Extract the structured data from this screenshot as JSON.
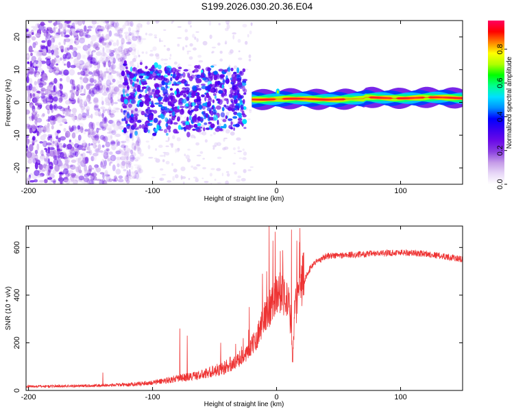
{
  "title": "S199.2026.030.20.36.E04",
  "colors": {
    "snr_line": "#ee3333",
    "colormap_stops": [
      "#ffffff",
      "#e7d7f7",
      "#c59be8",
      "#8a3fe0",
      "#6a0ae8",
      "#3b00f0",
      "#0000ff",
      "#0090ff",
      "#00e0ff",
      "#00ff90",
      "#00ff00",
      "#b0ff00",
      "#ffff00",
      "#ff8000",
      "#ff0000",
      "#ff0060"
    ]
  },
  "chart_data": [
    {
      "type": "heatmap",
      "name": "spectrogram",
      "xlabel": "Height of straight line (km)",
      "ylabel": "Frequency (Hz)",
      "xlim": [
        -202,
        150
      ],
      "ylim": [
        -25,
        25
      ],
      "xticks": [
        -200,
        -100,
        0,
        100
      ],
      "xtick_labels": [
        "-200",
        "-100",
        "0",
        "100"
      ],
      "yticks": [
        -20,
        -10,
        0,
        10,
        20
      ],
      "ytick_labels": [
        "-20",
        "-10",
        "0",
        "10",
        "20"
      ],
      "colorbar": {
        "label": "Normalized spectral amplitude",
        "range": [
          0,
          0.97
        ],
        "ticks": [
          0,
          0.2,
          0.4,
          0.6,
          0.8
        ],
        "tick_labels": [
          "0.0",
          "0.2",
          "0.4",
          "0.6",
          "0.8"
        ]
      },
      "description_points": {
        "noise_region_x": [
          -202,
          -110
        ],
        "scatter_region_x": [
          -125,
          -25
        ],
        "band_region_x": [
          -20,
          150
        ],
        "band_center_hz": 1.0,
        "band_peak_amplitude": 0.95
      }
    },
    {
      "type": "line",
      "name": "snr",
      "xlabel": "Height of straight line (km)",
      "ylabel": "SNR (10 * v/v)",
      "xlim": [
        -202,
        150
      ],
      "ylim": [
        0,
        690
      ],
      "xticks": [
        -200,
        -100,
        0,
        100
      ],
      "xtick_labels": [
        "-200",
        "-100",
        "0",
        "100"
      ],
      "yticks": [
        0,
        200,
        400,
        600
      ],
      "ytick_labels": [
        "0",
        "200",
        "400",
        "600"
      ],
      "trend": {
        "x": [
          -202,
          -150,
          -120,
          -100,
          -80,
          -60,
          -40,
          -30,
          -20,
          -15,
          -10,
          -5,
          0,
          5,
          10,
          13,
          15,
          20,
          25,
          30,
          40,
          60,
          80,
          100,
          120,
          140,
          150
        ],
        "y": [
          15,
          18,
          22,
          30,
          45,
          60,
          90,
          120,
          170,
          220,
          280,
          330,
          380,
          390,
          330,
          120,
          320,
          420,
          490,
          530,
          560,
          565,
          570,
          575,
          570,
          555,
          545
        ]
      },
      "spikes": {
        "x": [
          -140,
          -78,
          -72,
          -45,
          -22,
          -8,
          -6,
          3,
          12,
          15
        ],
        "y": [
          75,
          260,
          230,
          200,
          350,
          500,
          690,
          585,
          675,
          380
        ]
      }
    }
  ]
}
